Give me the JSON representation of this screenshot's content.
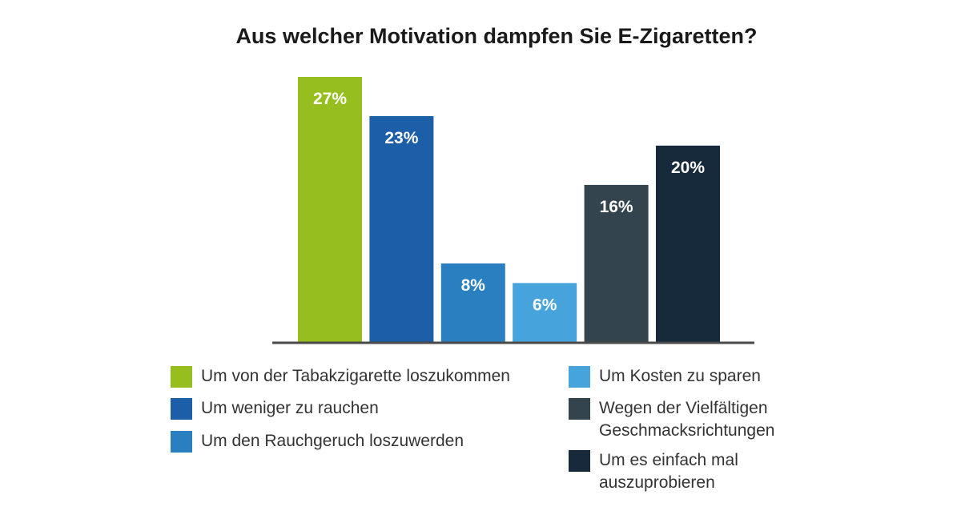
{
  "chart_data": {
    "type": "bar",
    "title": "Aus welcher Motivation dampfen Sie E-Zigaretten?",
    "xlabel": "",
    "ylabel": "",
    "ylim": [
      0,
      27
    ],
    "grid": false,
    "legend_position": "bottom",
    "categories": [
      "Um von der Tabakzigarette loszukommen",
      "Um weniger zu rauchen",
      "Um den Rauchgeruch loszuwerden",
      "Um Kosten zu sparen",
      "Wegen der Vielfältigen Geschmacksrichtungen",
      "Um es einfach mal auszuprobieren"
    ],
    "values": [
      27,
      23,
      8,
      6,
      16,
      20
    ],
    "data_labels": [
      "27%",
      "23%",
      "8%",
      "6%",
      "16%",
      "20%"
    ],
    "colors": [
      "#96be1e",
      "#1c5ea8",
      "#2a7fc1",
      "#47a3dc",
      "#33444f",
      "#162a3b"
    ]
  },
  "legend": [
    {
      "text": "Um von der Tabakzigarette loszukommen",
      "color": "#96be1e"
    },
    {
      "text": "Um weniger zu rauchen",
      "color": "#1c5ea8"
    },
    {
      "text": "Um den Rauchgeruch loszuwerden",
      "color": "#2a7fc1"
    },
    {
      "text": "Um Kosten zu sparen",
      "color": "#47a3dc"
    },
    {
      "text": "Wegen der Vielfältigen\nGeschmacksrichtungen",
      "color": "#33444f"
    },
    {
      "text": "Um es einfach mal\nauszuprobieren",
      "color": "#162a3b"
    }
  ]
}
